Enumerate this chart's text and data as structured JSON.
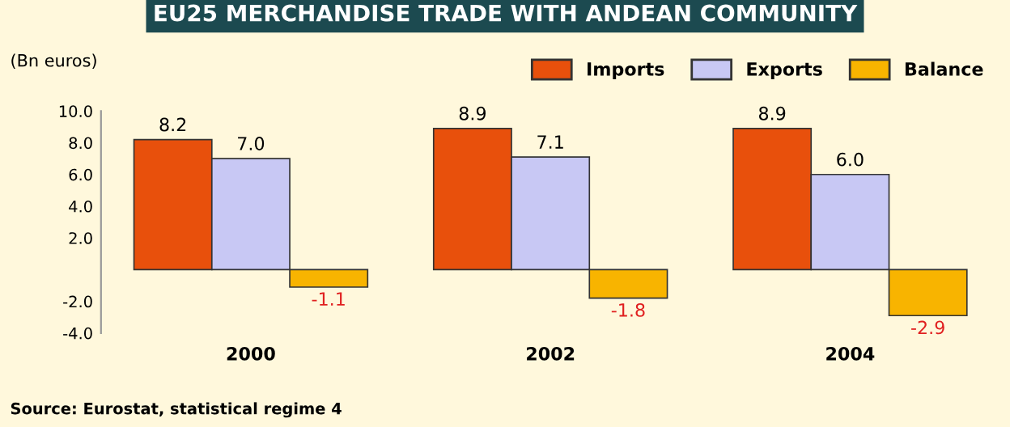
{
  "chart_data": {
    "type": "bar",
    "title": "EU25 MERCHANDISE TRADE WITH ANDEAN COMMUNITY",
    "ylabel": "(Bn euros)",
    "categories": [
      "2000",
      "2002",
      "2004"
    ],
    "series": [
      {
        "name": "Imports",
        "color": "#e8500c",
        "values": [
          8.2,
          8.9,
          8.9
        ],
        "value_labels": [
          "8.2",
          "8.9",
          "8.9"
        ]
      },
      {
        "name": "Exports",
        "color": "#c8c8f4",
        "values": [
          7.0,
          7.1,
          6.0
        ],
        "value_labels": [
          "7.0",
          "7.1",
          "6.0"
        ]
      },
      {
        "name": "Balance",
        "color": "#f8b400",
        "values": [
          -1.1,
          -1.8,
          -2.9
        ],
        "value_labels": [
          "-1.1",
          "-1.8",
          "-2.9"
        ]
      }
    ],
    "ylim": [
      -4,
      10
    ],
    "yticks": [
      {
        "value": -4,
        "label": "-4.0"
      },
      {
        "value": -2,
        "label": "-2.0"
      },
      {
        "value": 2,
        "label": "2.0"
      },
      {
        "value": 4,
        "label": "4.0"
      },
      {
        "value": 6,
        "label": "6.0"
      },
      {
        "value": 8,
        "label": "8.0"
      },
      {
        "value": 10,
        "label": "10.0"
      }
    ],
    "grid": false,
    "legend": "top right",
    "annotations": [
      "Source: Eurostat, statistical regime 4"
    ]
  }
}
